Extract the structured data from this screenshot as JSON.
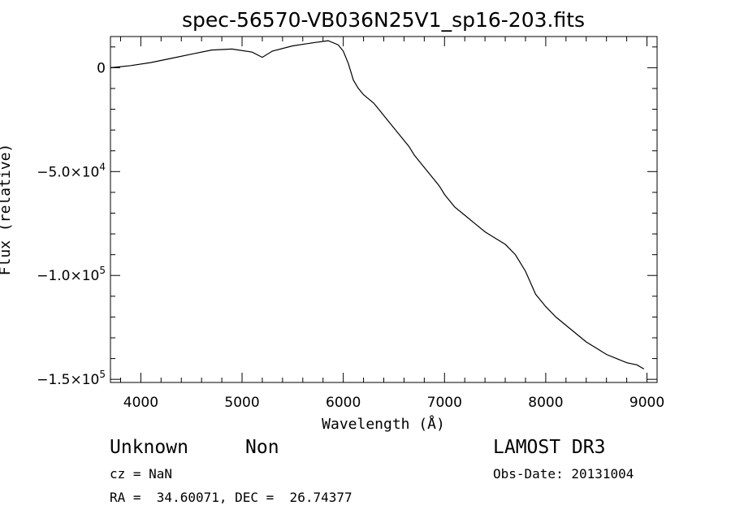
{
  "chart_data": {
    "type": "line",
    "title": "spec-56570-VB036N25V1_sp16-203.fits",
    "xlabel": "Wavelength (Å)",
    "ylabel": "Flux (relative)",
    "xlim": [
      3700,
      9100
    ],
    "ylim": [
      -151500,
      15000
    ],
    "x_ticks": [
      4000,
      5000,
      6000,
      7000,
      8000,
      9000
    ],
    "x_tick_labels": [
      "4000",
      "5000",
      "6000",
      "7000",
      "8000",
      "9000"
    ],
    "y_ticks": [
      0,
      -50000,
      -100000,
      -150000
    ],
    "y_tick_labels": [
      {
        "mant": "0",
        "exp": ""
      },
      {
        "mant": "−5.0×10",
        "exp": "4"
      },
      {
        "mant": "−1.0×10",
        "exp": "5"
      },
      {
        "mant": "−1.5×10",
        "exp": "5"
      }
    ],
    "grid": false,
    "series": [
      {
        "color": "#000000",
        "points": [
          [
            3700,
            0
          ],
          [
            3900,
            1000
          ],
          [
            4100,
            2500
          ],
          [
            4300,
            4500
          ],
          [
            4500,
            6500
          ],
          [
            4700,
            8500
          ],
          [
            4900,
            9000
          ],
          [
            5100,
            7500
          ],
          [
            5200,
            5000
          ],
          [
            5300,
            8000
          ],
          [
            5500,
            10500
          ],
          [
            5700,
            12000
          ],
          [
            5850,
            13000
          ],
          [
            5950,
            11000
          ],
          [
            6000,
            8000
          ],
          [
            6050,
            2000
          ],
          [
            6100,
            -6000
          ],
          [
            6150,
            -10000
          ],
          [
            6200,
            -13000
          ],
          [
            6250,
            -15000
          ],
          [
            6300,
            -17000
          ],
          [
            6350,
            -20000
          ],
          [
            6400,
            -23000
          ],
          [
            6450,
            -26000
          ],
          [
            6500,
            -29000
          ],
          [
            6550,
            -32000
          ],
          [
            6600,
            -35000
          ],
          [
            6650,
            -38000
          ],
          [
            6700,
            -42000
          ],
          [
            6750,
            -45000
          ],
          [
            6800,
            -48000
          ],
          [
            6850,
            -51000
          ],
          [
            6900,
            -54000
          ],
          [
            6950,
            -57000
          ],
          [
            7000,
            -61000
          ],
          [
            7050,
            -64000
          ],
          [
            7100,
            -67000
          ],
          [
            7200,
            -71000
          ],
          [
            7300,
            -75000
          ],
          [
            7400,
            -79000
          ],
          [
            7500,
            -82000
          ],
          [
            7600,
            -85000
          ],
          [
            7700,
            -90000
          ],
          [
            7800,
            -98000
          ],
          [
            7900,
            -109000
          ],
          [
            8000,
            -115000
          ],
          [
            8100,
            -120000
          ],
          [
            8200,
            -124000
          ],
          [
            8300,
            -128000
          ],
          [
            8400,
            -132000
          ],
          [
            8500,
            -135000
          ],
          [
            8600,
            -138000
          ],
          [
            8700,
            -140000
          ],
          [
            8800,
            -142000
          ],
          [
            8900,
            -143000
          ],
          [
            8970,
            -145000
          ]
        ]
      }
    ]
  },
  "info": {
    "object_class": "Unknown",
    "object_subclass": "Non",
    "redshift": "cz = NaN",
    "coords": "RA =  34.60071, DEC =  26.74377",
    "survey": "LAMOST DR3",
    "obs_date": "Obs-Date: 20131004"
  }
}
